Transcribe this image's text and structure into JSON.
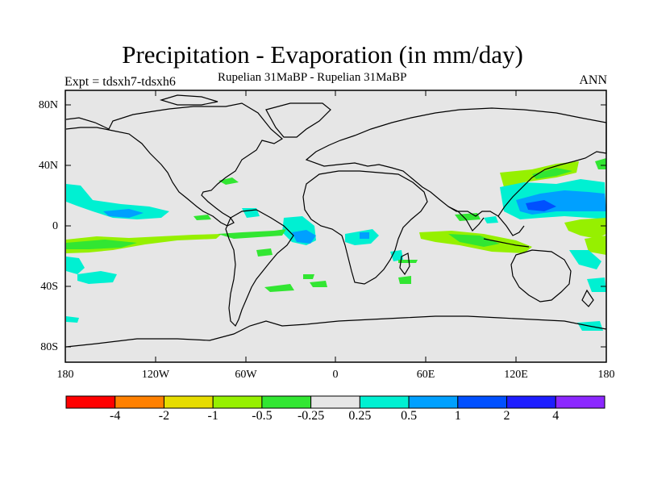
{
  "title": "Precipitation - Evaporation (in mm/day)",
  "left_label": "Expt = tdsxh7-tdsxh6",
  "center_label": "Rupelian  31MaBP - Rupelian  31MaBP",
  "right_label": "ANN",
  "y_ticks": [
    "80N",
    "40N",
    "0",
    "40S",
    "80S"
  ],
  "x_ticks": [
    "180",
    "120W",
    "60W",
    "0",
    "60E",
    "120E",
    "180"
  ],
  "colorbar": {
    "colors": [
      "#ff0000",
      "#ff8000",
      "#e6dc00",
      "#96f000",
      "#32e632",
      "#e6e6e6",
      "#00f0d2",
      "#00a0ff",
      "#0050ff",
      "#1e1eff",
      "#8c28ff"
    ],
    "labels": [
      "-4",
      "-2",
      "-1",
      "-0.5",
      "-0.25",
      "0.25",
      "0.5",
      "1",
      "2",
      "4"
    ]
  },
  "colors": {
    "land_ocean_neutral": "#e6e6e6",
    "coast": "#000000"
  }
}
